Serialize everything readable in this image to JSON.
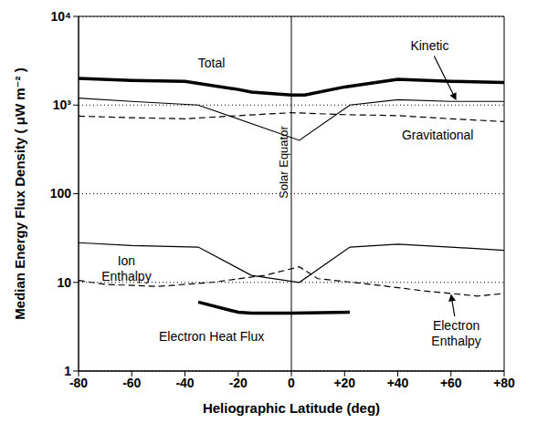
{
  "chart_data": {
    "type": "line",
    "log": "y",
    "grid": true,
    "x_label": "Heliographic Latitude (deg)",
    "y_label": "Median Energy Flux Density ( μW m⁻² )",
    "xlim": [
      -80,
      80
    ],
    "xticks": [
      -80,
      -60,
      -40,
      -20,
      0,
      {
        "value": 20,
        "label": "+20"
      },
      {
        "value": 40,
        "label": "+40"
      },
      {
        "value": 60,
        "label": "+60"
      },
      {
        "value": 80,
        "label": "+80"
      }
    ],
    "ylim": [
      1,
      10000
    ],
    "yticks": [
      1,
      10,
      100,
      {
        "value": 1000,
        "label": "10³"
      },
      {
        "value": 10000,
        "label": "10⁴"
      }
    ],
    "series": [
      {
        "name": "Total",
        "color": "#000000",
        "line_style": "thick",
        "x": [
          -80,
          -60,
          -40,
          -20,
          -15,
          0,
          5,
          20,
          40,
          60,
          80
        ],
        "values": [
          2000,
          1900,
          1850,
          1500,
          1400,
          1300,
          1300,
          1600,
          1950,
          1850,
          1800
        ]
      },
      {
        "name": "Kinetic",
        "color": "#000000",
        "line_style": "solid",
        "x": [
          -80,
          -60,
          -35,
          3,
          22,
          40,
          60,
          80
        ],
        "values": [
          1200,
          1100,
          1000,
          400,
          1000,
          1150,
          1100,
          1100
        ]
      },
      {
        "name": "Gravitational",
        "color": "#000000",
        "line_style": "dashed",
        "x": [
          -80,
          -60,
          -40,
          -20,
          0,
          20,
          40,
          60,
          80
        ],
        "values": [
          750,
          720,
          700,
          760,
          820,
          780,
          760,
          700,
          650
        ]
      },
      {
        "name": "Ion Enthalpy",
        "color": "#000000",
        "line_style": "solid",
        "x": [
          -80,
          -60,
          -35,
          -15,
          3,
          22,
          40,
          60,
          80
        ],
        "values": [
          28,
          26,
          25,
          12,
          10,
          25,
          27,
          25,
          23
        ]
      },
      {
        "name": "Electron Enthalpy",
        "color": "#000000",
        "line_style": "dashed",
        "x": [
          -80,
          -70,
          -50,
          -30,
          -10,
          3,
          10,
          30,
          50,
          60,
          70,
          80
        ],
        "values": [
          10.5,
          9.5,
          9,
          10,
          12,
          15,
          11,
          9.5,
          8,
          7.5,
          7,
          7.5
        ]
      },
      {
        "name": "Electron Heat Flux",
        "color": "#000000",
        "line_style": "thick",
        "x": [
          -35,
          -20,
          -15,
          0,
          22
        ],
        "values": [
          6,
          4.6,
          4.5,
          4.5,
          4.6
        ]
      }
    ],
    "reference_lines": [
      {
        "x": 0,
        "label": "Solar Equator"
      }
    ],
    "annotations": [
      {
        "lines": [
          "Total"
        ],
        "x": -30,
        "y": 2900
      },
      {
        "lines": [
          "Kinetic"
        ],
        "x": 52,
        "y": 4500,
        "arrow_to": [
          62,
          1130
        ]
      },
      {
        "lines": [
          "Gravitational"
        ],
        "x": 55,
        "y": 450
      },
      {
        "lines": [
          "Ion",
          "Enthalpy"
        ],
        "x": -62,
        "y": 17
      },
      {
        "lines": [
          "Electron Heat Flux"
        ],
        "x": -30,
        "y": 2.4
      },
      {
        "lines": [
          "Electron",
          "Enthalpy"
        ],
        "x": 62,
        "y": 3.2,
        "arrow_to": [
          60,
          7.4
        ]
      }
    ]
  }
}
